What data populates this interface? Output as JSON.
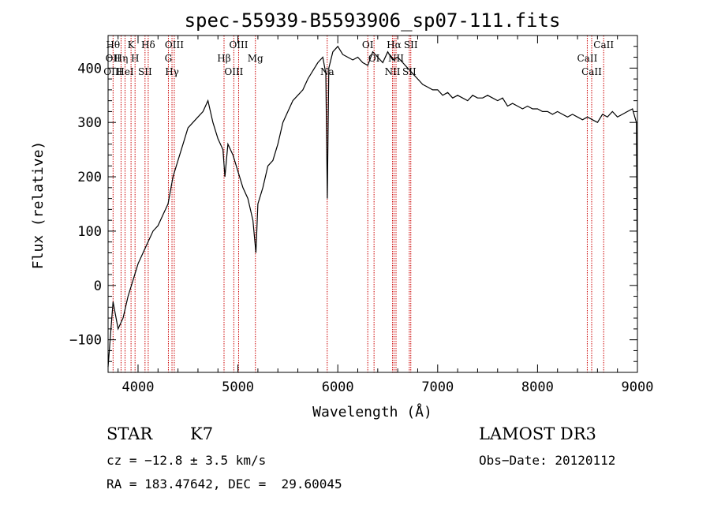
{
  "chart_data": {
    "type": "line",
    "title": "spec-55939-B5593906_sp07-111.fits",
    "xlabel": "Wavelength (Å)",
    "ylabel": "Flux (relative)",
    "xlim": [
      3700,
      9000
    ],
    "ylim": [
      -160,
      460
    ],
    "xticks": [
      4000,
      5000,
      6000,
      7000,
      8000,
      9000
    ],
    "yticks": [
      -100,
      0,
      100,
      200,
      300,
      400
    ],
    "grid": false,
    "line_color": "#000000",
    "marker_color": "#cc0000",
    "x": [
      3700,
      3750,
      3800,
      3850,
      3900,
      3950,
      4000,
      4050,
      4100,
      4150,
      4200,
      4250,
      4300,
      4350,
      4400,
      4450,
      4500,
      4550,
      4600,
      4650,
      4700,
      4750,
      4800,
      4850,
      4870,
      4900,
      4950,
      5000,
      5050,
      5100,
      5150,
      5180,
      5200,
      5250,
      5300,
      5350,
      5400,
      5450,
      5500,
      5550,
      5600,
      5650,
      5700,
      5750,
      5800,
      5850,
      5880,
      5895,
      5910,
      5950,
      6000,
      6050,
      6100,
      6150,
      6200,
      6250,
      6300,
      6350,
      6400,
      6450,
      6500,
      6550,
      6600,
      6650,
      6700,
      6750,
      6800,
      6850,
      6900,
      6950,
      7000,
      7050,
      7100,
      7150,
      7200,
      7250,
      7300,
      7350,
      7400,
      7450,
      7500,
      7550,
      7600,
      7650,
      7700,
      7750,
      7800,
      7850,
      7900,
      7950,
      8000,
      8050,
      8100,
      8150,
      8200,
      8250,
      8300,
      8350,
      8400,
      8450,
      8500,
      8550,
      8600,
      8650,
      8700,
      8750,
      8800,
      8850,
      8900,
      8950,
      8990,
      9000
    ],
    "y": [
      -150,
      -30,
      -80,
      -60,
      -20,
      10,
      40,
      60,
      80,
      100,
      110,
      130,
      150,
      200,
      230,
      260,
      290,
      300,
      310,
      320,
      340,
      300,
      270,
      250,
      200,
      260,
      240,
      210,
      180,
      160,
      120,
      60,
      150,
      180,
      220,
      230,
      260,
      300,
      320,
      340,
      350,
      360,
      380,
      395,
      410,
      420,
      390,
      160,
      400,
      430,
      440,
      425,
      420,
      415,
      420,
      410,
      405,
      430,
      420,
      410,
      430,
      415,
      420,
      410,
      400,
      390,
      380,
      370,
      365,
      360,
      360,
      350,
      355,
      345,
      350,
      345,
      340,
      350,
      345,
      345,
      350,
      345,
      340,
      345,
      330,
      335,
      330,
      325,
      330,
      325,
      325,
      320,
      320,
      315,
      320,
      315,
      310,
      315,
      310,
      305,
      310,
      305,
      300,
      315,
      310,
      320,
      310,
      315,
      320,
      325,
      300,
      -10
    ],
    "lines": [
      {
        "wavelength": 3750,
        "labels": [
          "Hθ",
          "OII",
          "OIII"
        ]
      },
      {
        "wavelength": 3830,
        "labels": [
          "Hη"
        ]
      },
      {
        "wavelength": 3870,
        "labels": [
          "HeI"
        ]
      },
      {
        "wavelength": 3930,
        "labels": [
          "K"
        ]
      },
      {
        "wavelength": 3970,
        "labels": [
          "H"
        ]
      },
      {
        "wavelength": 4070,
        "labels": [
          "SII"
        ]
      },
      {
        "wavelength": 4102,
        "labels": [
          "Hδ"
        ]
      },
      {
        "wavelength": 4304,
        "labels": [
          "G"
        ]
      },
      {
        "wavelength": 4340,
        "labels": [
          "Hγ"
        ]
      },
      {
        "wavelength": 4363,
        "labels": [
          "OIII"
        ]
      },
      {
        "wavelength": 4861,
        "labels": [
          "Hβ"
        ]
      },
      {
        "wavelength": 4959,
        "labels": [
          "OIII"
        ]
      },
      {
        "wavelength": 5007,
        "labels": [
          "OIII"
        ]
      },
      {
        "wavelength": 5175,
        "labels": [
          "Mg"
        ]
      },
      {
        "wavelength": 5894,
        "labels": [
          "Na"
        ]
      },
      {
        "wavelength": 6300,
        "labels": [
          "OI"
        ]
      },
      {
        "wavelength": 6363,
        "labels": [
          "OI"
        ]
      },
      {
        "wavelength": 6548,
        "labels": [
          "NII"
        ]
      },
      {
        "wavelength": 6563,
        "labels": [
          "Hα"
        ]
      },
      {
        "wavelength": 6583,
        "labels": [
          "NII"
        ]
      },
      {
        "wavelength": 6716,
        "labels": [
          "SII"
        ]
      },
      {
        "wavelength": 6731,
        "labels": [
          "SII"
        ]
      },
      {
        "wavelength": 8498,
        "labels": [
          "CaII"
        ]
      },
      {
        "wavelength": 8542,
        "labels": [
          "CaII"
        ]
      },
      {
        "wavelength": 8662,
        "labels": [
          "CaII"
        ]
      }
    ]
  },
  "info": {
    "class": "STAR",
    "subclass": "K7",
    "survey": "LAMOST DR3",
    "redshift": "cz = −12.8 ± 3.5 km/s",
    "obs_date": "Obs−Date: 20120112",
    "coords": "RA = 183.47642, DEC =  29.60045"
  }
}
